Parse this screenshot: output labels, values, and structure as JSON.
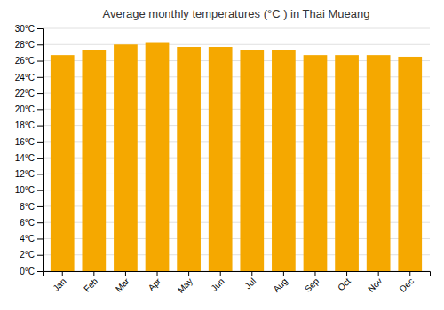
{
  "chart_data": {
    "type": "bar",
    "title": "Average monthly temperatures (°C ) in Thai Mueang",
    "categories": [
      "Jan",
      "Feb",
      "Mar",
      "Apr",
      "May",
      "Jun",
      "Jul",
      "Aug",
      "Sep",
      "Oct",
      "Nov",
      "Dec"
    ],
    "values": [
      26.7,
      27.3,
      28.0,
      28.3,
      27.7,
      27.7,
      27.3,
      27.3,
      26.7,
      26.7,
      26.7,
      26.5
    ],
    "color": "#F5A800",
    "ylim": [
      0,
      30
    ],
    "yticks": [
      {
        "value": 0,
        "label": "0°C"
      },
      {
        "value": 2,
        "label": "2°C"
      },
      {
        "value": 4,
        "label": "4°C"
      },
      {
        "value": 6,
        "label": "6°C"
      },
      {
        "value": 8,
        "label": "8°C"
      },
      {
        "value": 10,
        "label": "10°C"
      },
      {
        "value": 12,
        "label": "12°C"
      },
      {
        "value": 14,
        "label": "14°C"
      },
      {
        "value": 16,
        "label": "16°C"
      },
      {
        "value": 18,
        "label": "18°C"
      },
      {
        "value": 20,
        "label": "20°C"
      },
      {
        "value": 22,
        "label": "22°C"
      },
      {
        "value": 24,
        "label": "24°C"
      },
      {
        "value": 26,
        "label": "26°C"
      },
      {
        "value": 28,
        "label": "28°C"
      },
      {
        "value": 30,
        "label": "30°C"
      }
    ],
    "grid": true
  }
}
